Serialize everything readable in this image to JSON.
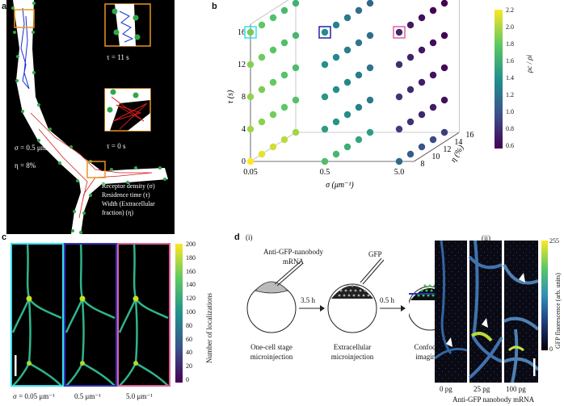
{
  "panel_a": {
    "label": "a",
    "tau_top": "τ = 11 s",
    "tau_bottom": "τ = 0 s",
    "sigma": "σ = 0.5 μm⁻¹",
    "eta": "η = 8%",
    "legend": [
      "Receptor density (σ)",
      "Residence time (τ)",
      "Width (Extracellular",
      "fraction) (η)"
    ]
  },
  "panel_b": {
    "label": "b",
    "ylabel": "τ (s)",
    "xlabel": "σ (μm⁻¹)",
    "zlabel": "η (%)",
    "colorbar_label": "ρc / ρi",
    "colorbar_ticks": [
      "2.2",
      "2.0",
      "1.8",
      "1.6",
      "1.4",
      "1.2",
      "1.0",
      "0.8",
      "0.6"
    ],
    "colors": {
      "low": "#440154",
      "mid": "#21918c",
      "high": "#fde725",
      "cyan": "#33e0e8",
      "blue": "#2222aa",
      "pink": "#e0609a"
    }
  },
  "chart_data": {
    "type": "scatter",
    "x_ticks": [
      "0.05",
      "0.5",
      "5.0"
    ],
    "y_ticks": [
      "0",
      "4",
      "8",
      "12",
      "16"
    ],
    "z_ticks": [
      "8",
      "10",
      "12",
      "14",
      "16"
    ],
    "sigma_values": [
      0.05,
      0.5,
      5.0
    ],
    "tau_values": [
      0,
      4,
      8,
      12,
      16
    ],
    "eta_values": [
      8,
      10,
      12,
      14,
      16
    ],
    "ratio_by_sigma": [
      2.0,
      1.5,
      0.9
    ],
    "colorbar_range": [
      0.55,
      2.2
    ]
  },
  "panel_c": {
    "label": "c",
    "captions": [
      "σ = 0.05 μm⁻¹",
      "0.5 μm⁻¹",
      "5.0 μm⁻¹"
    ],
    "colorbar_label": "Number of localizations",
    "colorbar_ticks": [
      "200",
      "180",
      "160",
      "140",
      "120",
      "100",
      "80",
      "60",
      "40",
      "20",
      "0"
    ],
    "frame_colors": [
      "#33e0e8",
      "#3333bb",
      "#e0609a"
    ]
  },
  "panel_d": {
    "label": "d",
    "sub_i": "(i)",
    "sub_ii": "(ii)",
    "mrna_label_1": "Anti-GFP-nanobody",
    "mrna_label_2": "mRNA",
    "gfp_label": "GFP",
    "time_1": "3.5 h",
    "time_2": "0.5 h",
    "step_1": [
      "One-cell stage",
      "microinjection"
    ],
    "step_2": [
      "Extracellular",
      "microinjection"
    ],
    "step_3": [
      "Confocal",
      "imaging"
    ],
    "doses": [
      "0 pg",
      "25 pg",
      "100 pg"
    ],
    "xlabel": "Anti-GFP nanobody mRNA",
    "colorbar_label": "GFP fluorescence (arb. units)",
    "colorbar_ticks": [
      "255",
      "0"
    ]
  }
}
